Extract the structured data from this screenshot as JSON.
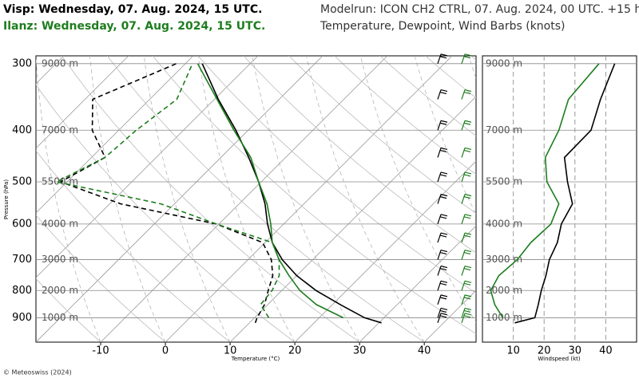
{
  "header": {
    "visp": "Visp: Wednesday, 07. Aug. 2024, 15 UTC.",
    "ilanz": "Ilanz: Wednesday, 07. Aug. 2024, 15 UTC.",
    "modelrun": "Modelrun: ICON CH2 CTRL, 07. Aug. 2024, 00 UTC. +15 h",
    "subtitle": "Temperature, Dewpoint, Wind Barbs (knots)"
  },
  "footer": "© Meteoswiss (2024)",
  "chart_data": [
    {
      "type": "skewt",
      "ylabel": "Pressure (hPa)",
      "xlabel": "Temperature (°C)",
      "log_y": true,
      "ylim": [
        1000,
        290
      ],
      "yticks": [
        300,
        400,
        500,
        600,
        700,
        800,
        900
      ],
      "height_labels": [
        "9000 m",
        "7000 m",
        "5500 m",
        "4000 m",
        "3000 m",
        "2000 m",
        "1000 m"
      ],
      "xlim": [
        -20,
        48
      ],
      "xticks": [
        -10,
        0,
        10,
        20,
        30,
        40
      ],
      "grid": true,
      "y": [
        920,
        900,
        850,
        800,
        750,
        700,
        650,
        600,
        550,
        500,
        450,
        400,
        350,
        300
      ],
      "series": [
        {
          "color": "#000000",
          "dashed": false,
          "values": [
            30.4,
            27.0,
            21.2,
            15.3,
            10.0,
            5.3,
            1.1,
            -2.5,
            -6.0,
            -10.4,
            -15.7,
            -21.9,
            -29.4,
            -37.4
          ]
        },
        {
          "color": "#1e7d1e",
          "dashed": false,
          "values": [
            null,
            23.7,
            17.5,
            12.8,
            8.8,
            4.8,
            1.1,
            -2.0,
            -5.7,
            -10.4,
            -15.4,
            -22.2,
            -29.6,
            -38.1
          ]
        },
        {
          "color": "#000000",
          "dashed": true,
          "values": [
            10.9,
            10.4,
            9.5,
            7.9,
            6.3,
            3.6,
            -0.4,
            -10.4,
            -28.3,
            -41.0,
            -37.9,
            -44.1,
            -48.8,
            -41.4
          ]
        },
        {
          "color": "#1e7d1e",
          "dashed": true,
          "values": [
            null,
            12.2,
            8.9,
            8.5,
            7.3,
            4.8,
            1.1,
            -10.4,
            -22.1,
            -41.6,
            -37.9,
            -37.3,
            -35.8,
            -38.9
          ]
        }
      ]
    },
    {
      "type": "line",
      "xlabel": "Windspeed (kt)",
      "log_y": true,
      "ylim": [
        1000,
        290
      ],
      "yticks": [
        300,
        400,
        500,
        600,
        700,
        800,
        900
      ],
      "height_labels": [
        "9000 m",
        "7000 m",
        "5500 m",
        "4000 m",
        "3000 m",
        "2000 m",
        "1000 m"
      ],
      "xlim": [
        0,
        50
      ],
      "xticks": [
        10,
        20,
        30,
        40
      ],
      "grid": true,
      "y": [
        920,
        900,
        850,
        800,
        750,
        700,
        650,
        600,
        550,
        500,
        450,
        400,
        350,
        300
      ],
      "series": [
        {
          "color": "#000000",
          "values": [
            10.5,
            17.0,
            18.1,
            19.1,
            20.6,
            21.7,
            24.3,
            25.6,
            29.2,
            27.6,
            26.6,
            35.2,
            38.3,
            42.9
          ]
        },
        {
          "color": "#1e7d1e",
          "values": [
            null,
            6.6,
            4.0,
            2.7,
            5.3,
            11.3,
            15.7,
            22.2,
            24.8,
            20.9,
            20.4,
            24.8,
            27.9,
            37.8
          ]
        }
      ]
    }
  ]
}
